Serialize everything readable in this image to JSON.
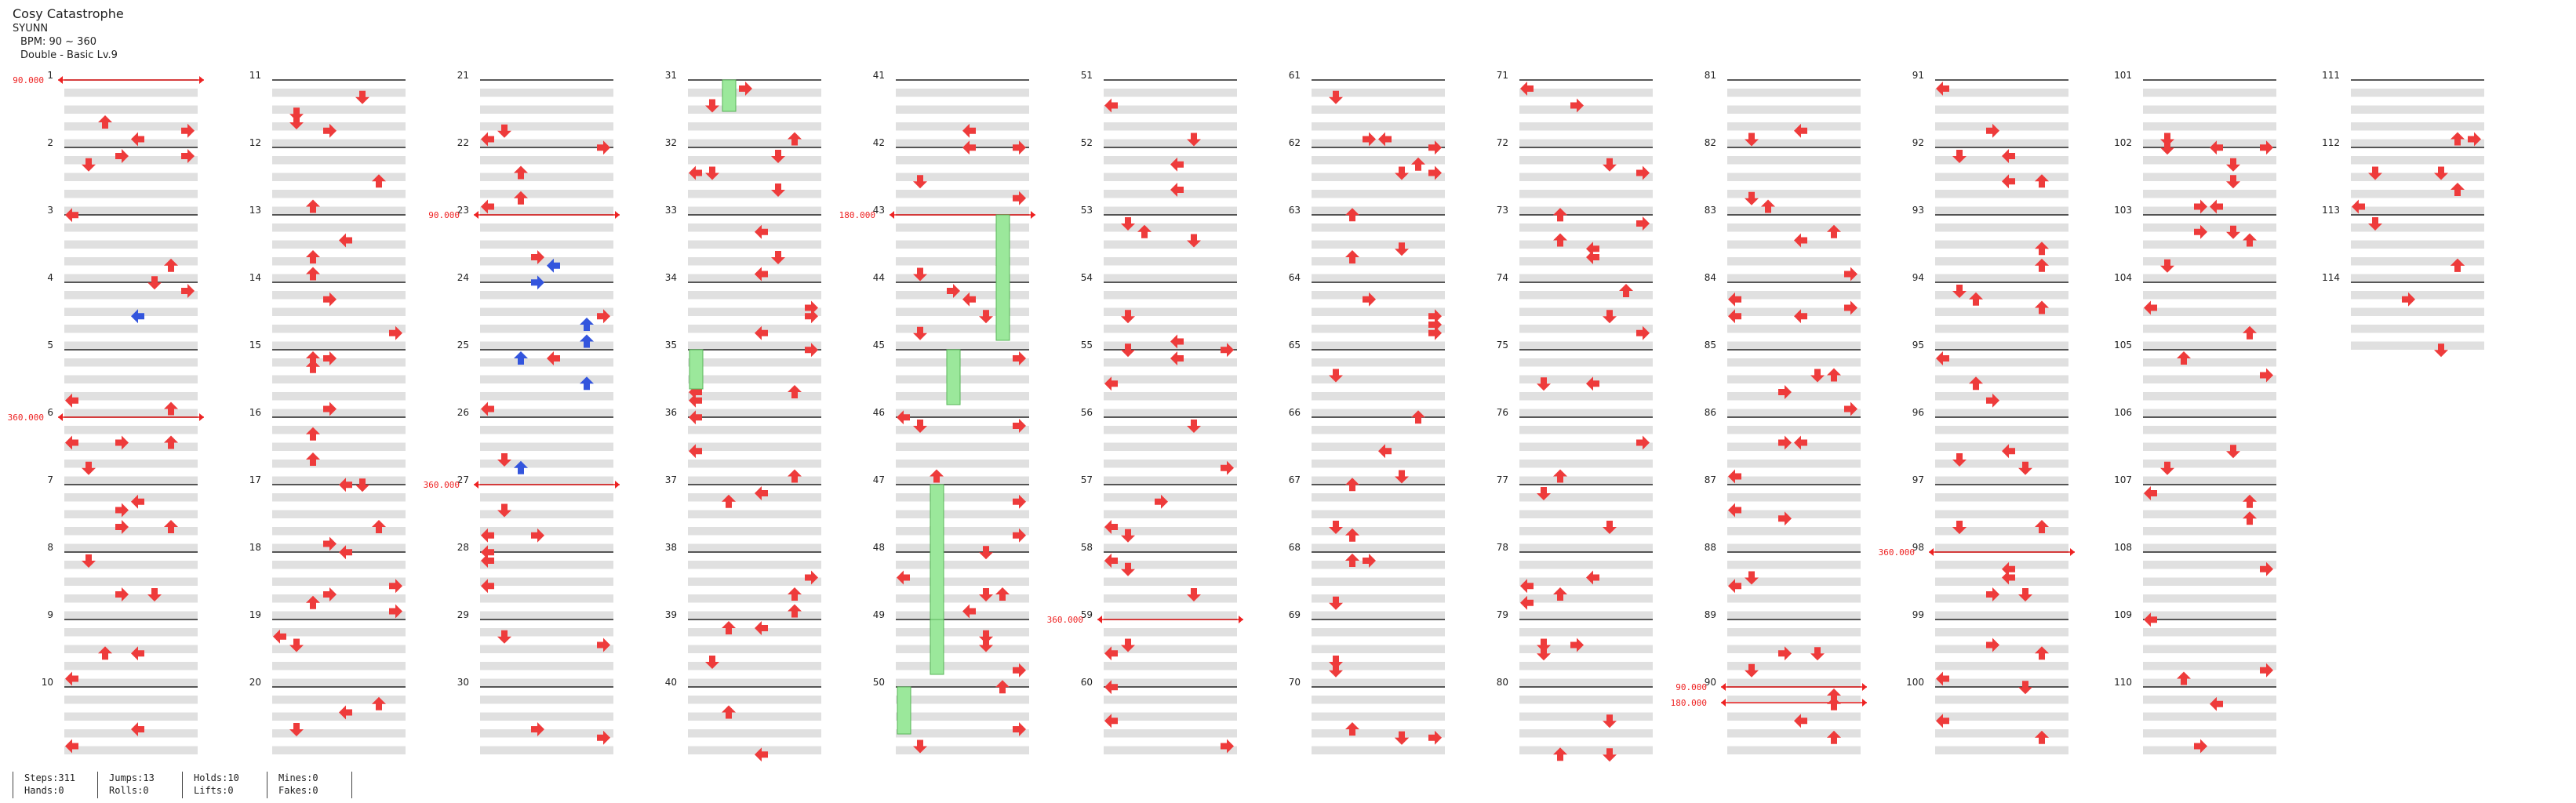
{
  "song": {
    "title": "Cosy Catastrophe",
    "artist": "SYUNN",
    "bpm_label": "BPM: 90 ~ 360",
    "difficulty_label": "Double - Basic Lv.9"
  },
  "stats": {
    "steps": "Steps:311",
    "hands": "Hands:0",
    "jumps": "Jumps:13",
    "rolls": "Rolls:0",
    "holds": "Holds:10",
    "lifts": "Lifts:0",
    "mines": "Mines:0",
    "fakes": "Fakes:0"
  },
  "colors": {
    "red_arrow": "#ee3b3b",
    "blue_arrow": "#3355dd",
    "hold": "#9be89b",
    "hold_border": "#58b458",
    "bpm_line": "#ee2222",
    "band": "#e0e0e0",
    "rule": "#222222"
  },
  "chart": {
    "measures_total": 114,
    "bpm_changes": [
      {
        "label": "90.000",
        "measure": 1
      },
      {
        "label": "360.000",
        "measure": 6
      },
      {
        "label": "90.000",
        "measure": 23
      },
      {
        "label": "360.000",
        "measure": 27
      },
      {
        "label": "180.000",
        "measure": 43
      },
      {
        "label": "360.000",
        "measure": 59
      },
      {
        "label": "90.000",
        "measure": 90
      },
      {
        "label": "180.000",
        "measure": 90
      },
      {
        "label": "360.000",
        "measure": 98
      }
    ]
  }
}
